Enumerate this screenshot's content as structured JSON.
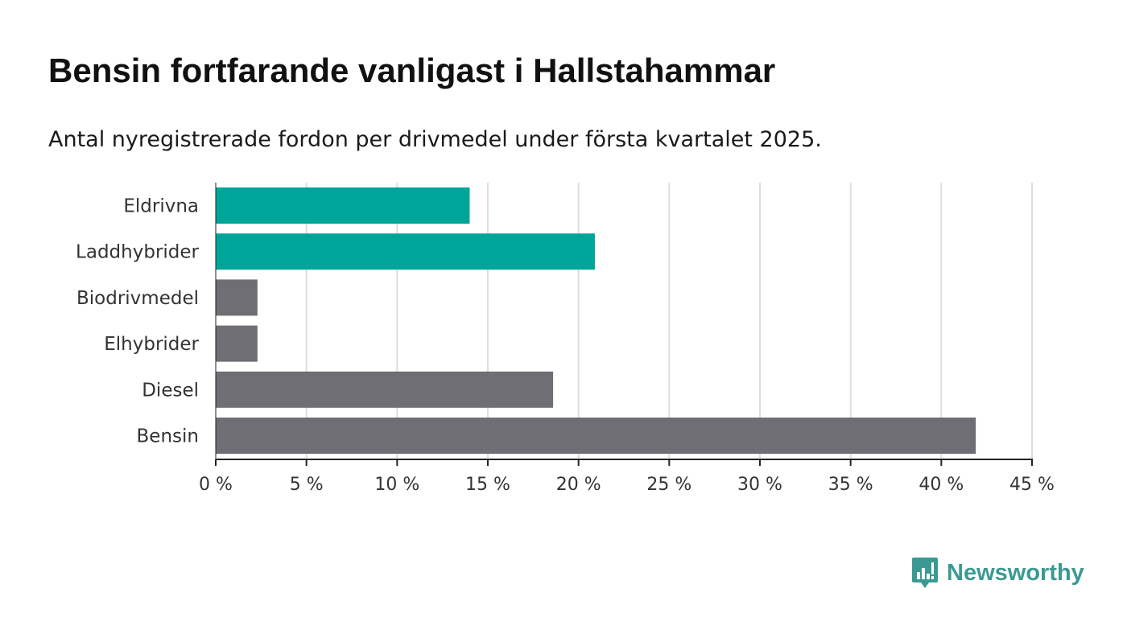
{
  "header": {
    "title": "Bensin fortfarande vanligast i Hallstahammar",
    "subtitle": "Antal nyregistrerade fordon per drivmedel under första kvartalet 2025."
  },
  "brand": {
    "name": "Newsworthy",
    "logo_icon": "bar-chart-speech-bubble-icon",
    "color": "#3a9a93"
  },
  "chart_data": {
    "type": "bar",
    "orientation": "horizontal",
    "categories": [
      "Eldrivna",
      "Laddhybrider",
      "Biodrivmedel",
      "Elhybrider",
      "Diesel",
      "Bensin"
    ],
    "values": [
      14.0,
      20.9,
      2.3,
      2.3,
      18.6,
      41.9
    ],
    "bar_colors": [
      "#00a59a",
      "#00a59a",
      "#6f6e75",
      "#6f6e75",
      "#6f6e75",
      "#6f6e75"
    ],
    "xlim": [
      0,
      45
    ],
    "x_ticks": [
      0,
      5,
      10,
      15,
      20,
      25,
      30,
      35,
      40,
      45
    ],
    "x_tick_labels": [
      "0 %",
      "5 %",
      "10 %",
      "15 %",
      "20 %",
      "25 %",
      "30 %",
      "35 %",
      "40 %",
      "45 %"
    ],
    "grid": "vertical",
    "gridline_color": "#dddddd",
    "axis_color": "#222222",
    "title": "Bensin fortfarande vanligast i Hallstahammar",
    "xlabel": "",
    "ylabel": ""
  }
}
